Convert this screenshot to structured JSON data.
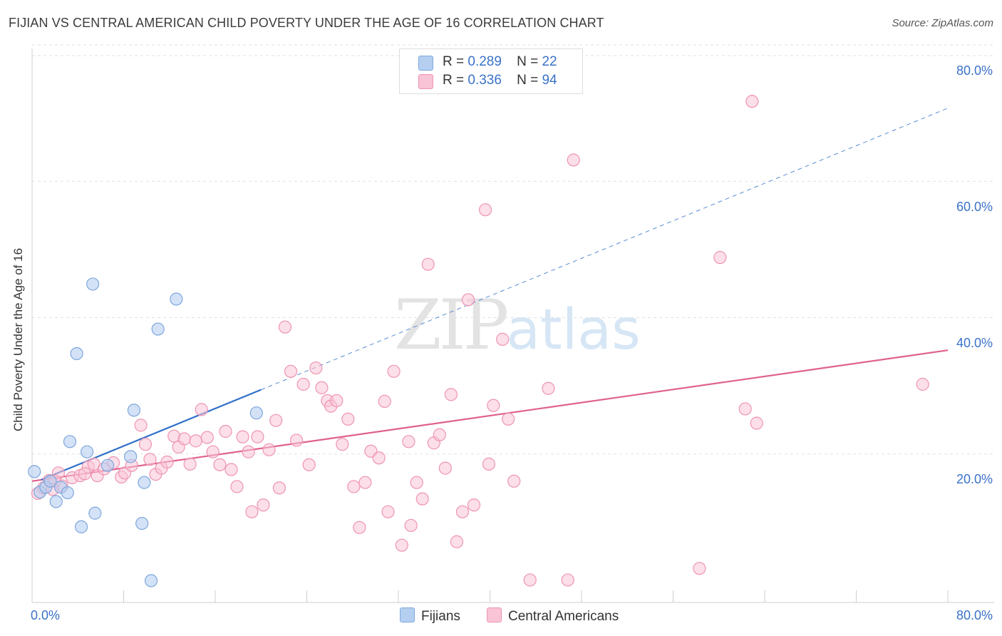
{
  "title": "FIJIAN VS CENTRAL AMERICAN CHILD POVERTY UNDER THE AGE OF 16 CORRELATION CHART",
  "source": "Source: ZipAtlas.com",
  "watermark": {
    "zip": "ZIP",
    "atlas": "atlas"
  },
  "legend": {
    "fijians": {
      "r_label": "R =",
      "r_value": "0.289",
      "n_label": "N =",
      "n_value": "22"
    },
    "central": {
      "r_label": "R =",
      "r_value": "0.336",
      "n_label": "N =",
      "n_value": "94"
    }
  },
  "bottom_legend": {
    "fijians": "Fijians",
    "central": "Central Americans"
  },
  "colors": {
    "fijian_fill": "#b5cff1",
    "fijian_stroke": "#7ea7dc",
    "fijian_line": "#2f6fc9",
    "central_fill": "#f9c4d6",
    "central_stroke": "#ee94b3",
    "central_line": "#e0608f",
    "axis_label": "#3a72c9",
    "grid": "#e2e2e2"
  },
  "chart_data": {
    "type": "scatter",
    "title": "FIJIAN VS CENTRAL AMERICAN CHILD POVERTY UNDER THE AGE OF 16 CORRELATION CHART",
    "xlabel": "",
    "ylabel": "Child Poverty Under the Age of 16",
    "xlim": [
      0,
      80
    ],
    "ylim": [
      0,
      80
    ],
    "x_tick_labels": [
      "0.0%",
      "80.0%"
    ],
    "y_tick_values": [
      20,
      40,
      60,
      80
    ],
    "y_tick_labels": [
      "20.0%",
      "40.0%",
      "60.0%",
      "80.0%"
    ],
    "series": [
      {
        "name": "Fijians",
        "R": 0.289,
        "N": 22,
        "points": [
          [
            0.2,
            19.2
          ],
          [
            0.7,
            16.2
          ],
          [
            1.2,
            16.9
          ],
          [
            1.6,
            17.8
          ],
          [
            2.1,
            14.8
          ],
          [
            2.5,
            16.9
          ],
          [
            3.1,
            16.1
          ],
          [
            3.3,
            23.6
          ],
          [
            3.9,
            36.5
          ],
          [
            4.3,
            11.1
          ],
          [
            4.8,
            22.1
          ],
          [
            5.3,
            46.7
          ],
          [
            5.5,
            13.1
          ],
          [
            6.6,
            20.1
          ],
          [
            8.6,
            21.4
          ],
          [
            8.9,
            28.2
          ],
          [
            9.6,
            11.6
          ],
          [
            9.8,
            17.6
          ],
          [
            10.4,
            3.2
          ],
          [
            11.0,
            40.1
          ],
          [
            12.6,
            44.5
          ],
          [
            19.6,
            27.8
          ]
        ],
        "trend": {
          "x0": 0.8,
          "y0": 18.0,
          "x1": 20.0,
          "y1": 31.2,
          "dashed_x1": 80.0,
          "dashed_y1": 72.5
        }
      },
      {
        "name": "Central Americans",
        "R": 0.336,
        "N": 94,
        "points": [
          [
            0.5,
            16.0
          ],
          [
            1.0,
            16.8
          ],
          [
            1.5,
            17.9
          ],
          [
            2.3,
            19.0
          ],
          [
            2.6,
            17.1
          ],
          [
            3.5,
            18.3
          ],
          [
            4.2,
            18.6
          ],
          [
            4.9,
            19.9
          ],
          [
            5.4,
            20.3
          ],
          [
            5.7,
            18.6
          ],
          [
            6.3,
            19.6
          ],
          [
            7.1,
            20.5
          ],
          [
            7.8,
            18.4
          ],
          [
            8.1,
            19.0
          ],
          [
            8.7,
            20.1
          ],
          [
            9.5,
            26.0
          ],
          [
            9.9,
            23.2
          ],
          [
            10.3,
            21.0
          ],
          [
            10.8,
            18.8
          ],
          [
            11.3,
            19.7
          ],
          [
            11.8,
            20.6
          ],
          [
            12.4,
            24.4
          ],
          [
            12.8,
            22.8
          ],
          [
            13.3,
            24.0
          ],
          [
            13.8,
            20.3
          ],
          [
            14.3,
            23.7
          ],
          [
            14.8,
            28.3
          ],
          [
            15.3,
            24.2
          ],
          [
            15.8,
            22.1
          ],
          [
            16.4,
            20.2
          ],
          [
            16.9,
            25.1
          ],
          [
            17.4,
            19.5
          ],
          [
            17.9,
            17.0
          ],
          [
            18.4,
            24.3
          ],
          [
            18.9,
            22.1
          ],
          [
            19.2,
            13.3
          ],
          [
            19.7,
            24.3
          ],
          [
            20.2,
            14.3
          ],
          [
            20.7,
            22.4
          ],
          [
            21.3,
            26.7
          ],
          [
            21.6,
            16.8
          ],
          [
            22.1,
            40.4
          ],
          [
            22.6,
            33.9
          ],
          [
            23.1,
            23.8
          ],
          [
            23.7,
            32.0
          ],
          [
            24.2,
            20.2
          ],
          [
            24.8,
            34.4
          ],
          [
            25.3,
            31.5
          ],
          [
            25.8,
            29.6
          ],
          [
            26.1,
            28.8
          ],
          [
            26.6,
            29.6
          ],
          [
            27.1,
            23.2
          ],
          [
            27.6,
            26.9
          ],
          [
            28.1,
            17.0
          ],
          [
            28.6,
            11.0
          ],
          [
            29.1,
            17.6
          ],
          [
            29.6,
            22.2
          ],
          [
            30.3,
            21.2
          ],
          [
            30.8,
            29.5
          ],
          [
            31.1,
            13.3
          ],
          [
            31.6,
            33.9
          ],
          [
            32.3,
            8.4
          ],
          [
            32.9,
            23.6
          ],
          [
            33.1,
            11.3
          ],
          [
            33.6,
            17.6
          ],
          [
            34.1,
            15.2
          ],
          [
            34.6,
            49.6
          ],
          [
            35.1,
            23.4
          ],
          [
            35.6,
            24.6
          ],
          [
            36.1,
            19.7
          ],
          [
            36.6,
            30.5
          ],
          [
            37.1,
            8.9
          ],
          [
            37.6,
            13.3
          ],
          [
            38.1,
            44.4
          ],
          [
            38.6,
            14.3
          ],
          [
            39.6,
            57.6
          ],
          [
            39.9,
            20.3
          ],
          [
            40.3,
            28.9
          ],
          [
            41.1,
            38.6
          ],
          [
            41.6,
            26.9
          ],
          [
            42.1,
            17.8
          ],
          [
            43.5,
            3.3
          ],
          [
            45.1,
            31.4
          ],
          [
            46.8,
            3.3
          ],
          [
            47.3,
            64.9
          ],
          [
            58.3,
            5.0
          ],
          [
            60.1,
            50.6
          ],
          [
            62.3,
            28.4
          ],
          [
            62.9,
            73.5
          ],
          [
            63.3,
            26.3
          ],
          [
            77.8,
            32.0
          ],
          [
            2.0,
            17.8
          ],
          [
            1.8,
            16.6
          ],
          [
            4.6,
            18.9
          ]
        ],
        "trend": {
          "x0": 0,
          "y0": 17.8,
          "x1": 80,
          "y1": 37.0
        }
      }
    ]
  }
}
